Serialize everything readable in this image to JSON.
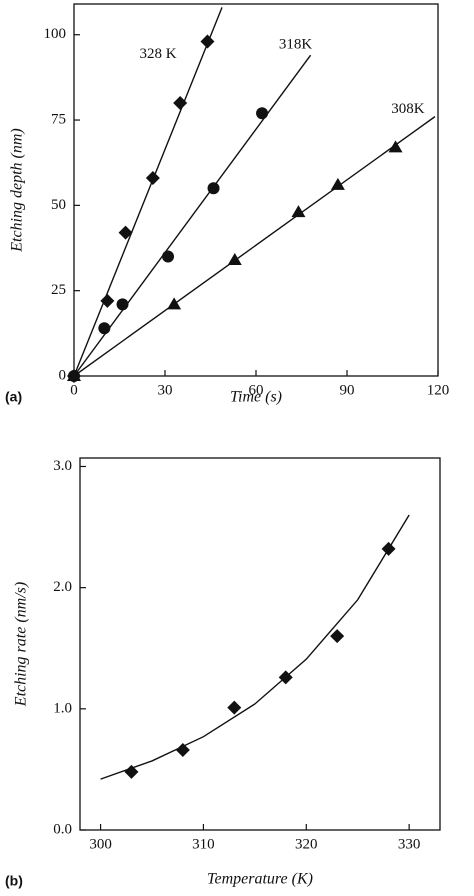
{
  "chart_data": [
    {
      "type": "scatter",
      "panel_label": "(a)",
      "x_label": "Time (s)",
      "y_label": "Etching depth (nm)",
      "xlim": [
        0,
        120
      ],
      "ylim": [
        0,
        109
      ],
      "xticks": [
        0,
        30,
        60,
        90,
        120
      ],
      "yticks": [
        0,
        25,
        50,
        75,
        100
      ],
      "series": [
        {
          "name": "328 K",
          "marker": "diamond",
          "color": "#111111",
          "x": [
            0,
            11,
            17,
            26,
            35,
            44
          ],
          "values": [
            0,
            22,
            42,
            58,
            80,
            98
          ],
          "fit_x": [
            0,
            48.8
          ],
          "fit_values": [
            0,
            108
          ]
        },
        {
          "name": "318K",
          "marker": "circle",
          "color": "#111111",
          "x": [
            0,
            10,
            16,
            31,
            46,
            62
          ],
          "values": [
            0,
            14,
            21,
            35,
            55,
            77
          ],
          "fit_x": [
            0,
            78
          ],
          "fit_values": [
            0,
            94
          ]
        },
        {
          "name": "308K",
          "marker": "triangle",
          "color": "#111111",
          "x": [
            0,
            33,
            53,
            74,
            87,
            106
          ],
          "values": [
            0,
            21,
            34,
            48,
            56,
            67
          ],
          "fit_x": [
            0,
            119
          ],
          "fit_values": [
            0,
            76
          ]
        }
      ]
    },
    {
      "type": "scatter",
      "panel_label": "(b)",
      "x_label": "Temperature (K)",
      "y_label": "Etching rate (nm/s)",
      "xlim": [
        298,
        333
      ],
      "ylim": [
        0,
        3.07
      ],
      "xticks": [
        300,
        310,
        320,
        330
      ],
      "yticks": [
        {
          "value": 0,
          "label": "0.0"
        },
        {
          "value": 1,
          "label": "1.0"
        },
        {
          "value": 2,
          "label": "2.0"
        },
        {
          "value": 3,
          "label": "3.0"
        }
      ],
      "series": [
        {
          "marker": "diamond",
          "color": "#111111",
          "x": [
            303,
            308,
            313,
            318,
            323,
            328
          ],
          "values": [
            0.48,
            0.66,
            1.01,
            1.26,
            1.6,
            2.32
          ],
          "fit_x": [
            300,
            305,
            310,
            315,
            320,
            325,
            330
          ],
          "fit_values": [
            0.42,
            0.57,
            0.77,
            1.04,
            1.41,
            1.9,
            2.6
          ]
        }
      ]
    }
  ]
}
